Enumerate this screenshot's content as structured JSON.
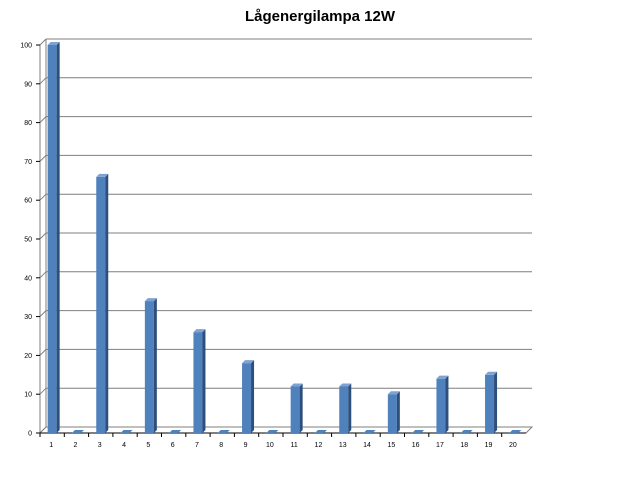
{
  "chart_data": {
    "type": "bar",
    "title": "Lågenergilampa 12W",
    "xlabel": "",
    "ylabel": "",
    "categories": [
      "1",
      "2",
      "3",
      "4",
      "5",
      "6",
      "7",
      "8",
      "9",
      "10",
      "11",
      "12",
      "13",
      "14",
      "15",
      "16",
      "17",
      "18",
      "19",
      "20"
    ],
    "values": [
      100,
      0,
      66,
      0,
      34,
      0,
      26,
      0,
      18,
      0,
      12,
      0,
      12,
      0,
      10,
      0,
      14,
      0,
      15,
      0
    ],
    "ylim": [
      0,
      100
    ],
    "yticks": [
      "0",
      "10",
      "20",
      "30",
      "40",
      "50",
      "60",
      "70",
      "80",
      "90",
      "100"
    ],
    "grid": true,
    "legend": "none",
    "colors": {
      "bar_front": "#4f81bd",
      "bar_side": "#2c4f7c",
      "bar_top": "#7ea2d3",
      "grid": "#7f7f7f"
    }
  }
}
